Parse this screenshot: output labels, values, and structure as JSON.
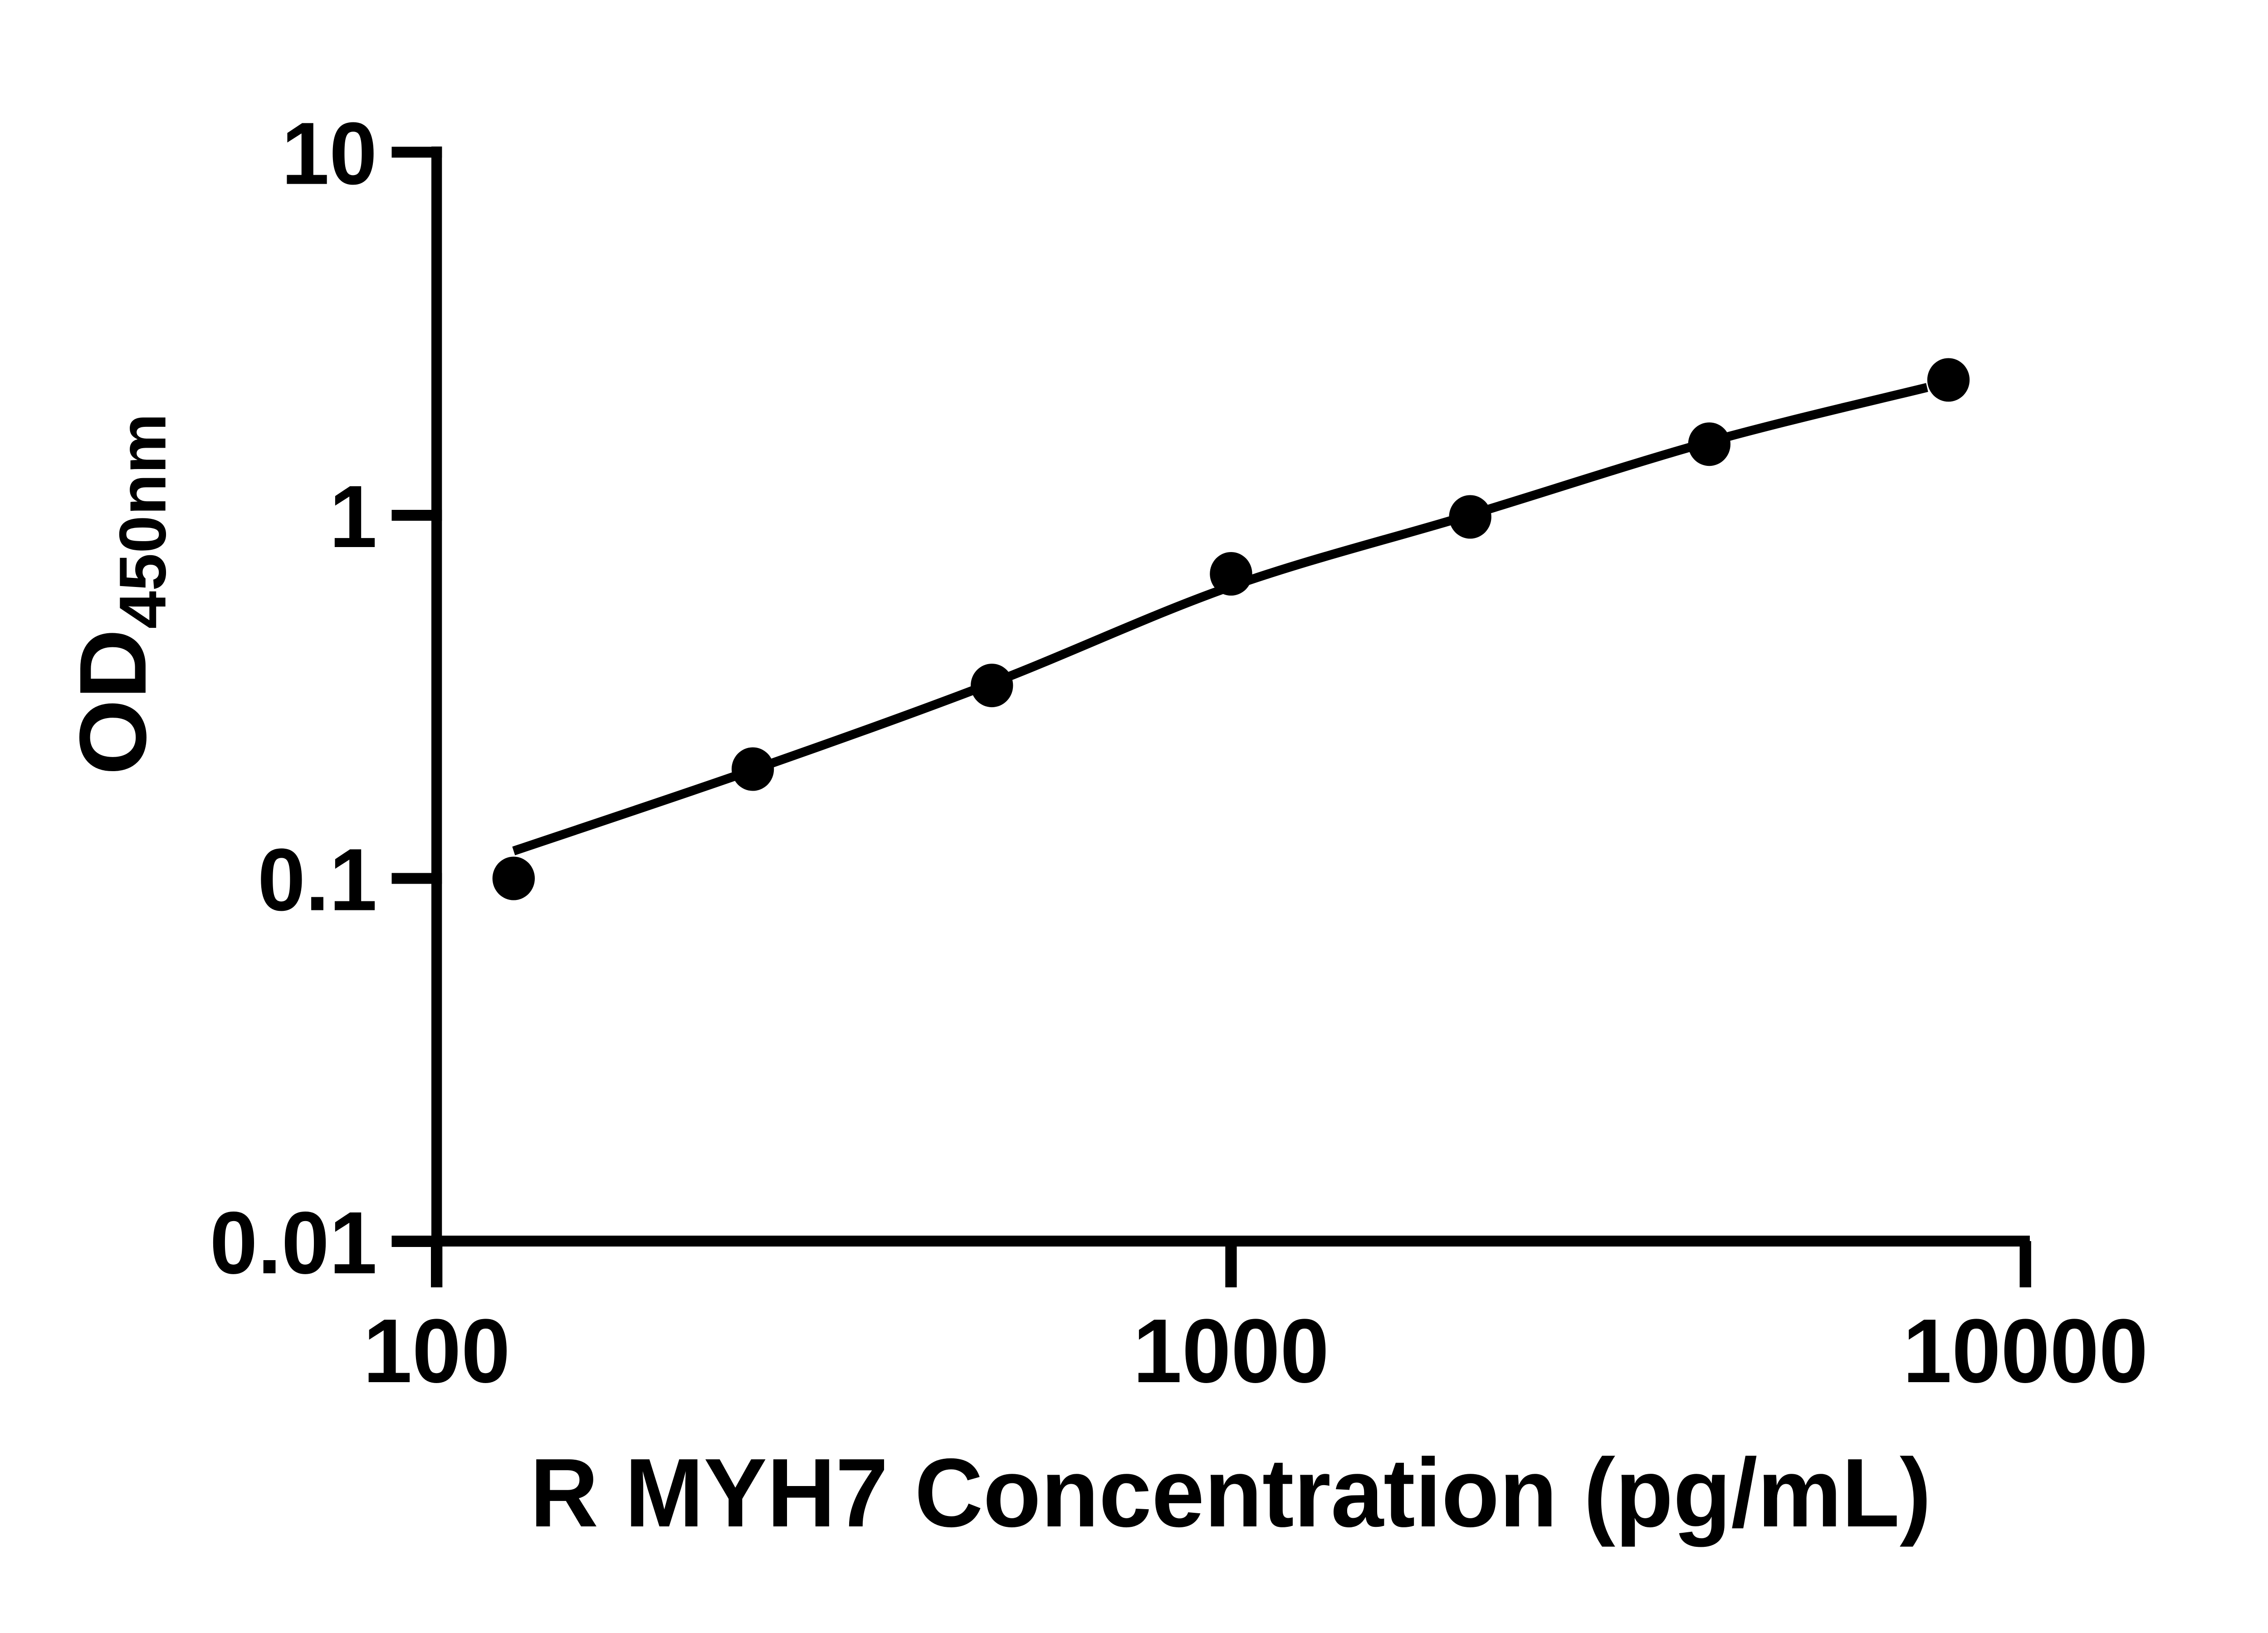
{
  "chart_data": {
    "type": "scatter",
    "title": "",
    "xlabel": "R MYH7 Concentration (pg/mL)",
    "ylabel_main": "OD",
    "ylabel_sub": "450nm",
    "x_scale": "log",
    "y_scale": "log",
    "xlim": [
      100,
      10000
    ],
    "ylim": [
      0.01,
      10
    ],
    "grid": false,
    "legend": false,
    "background_color": "#ffffff",
    "line_color": "#000000",
    "marker_color": "#000000",
    "x_tick_values": [
      100,
      1000,
      10000
    ],
    "x_tick_labels": [
      "100",
      "1000",
      "10000"
    ],
    "y_tick_values": [
      10,
      1,
      0.1,
      0.01
    ],
    "y_tick_labels": [
      "10",
      "1",
      "0.1",
      "0.01"
    ],
    "series": [
      {
        "name": "standard curve data points",
        "marker": "filled-circle",
        "x": [
          125,
          250,
          500,
          1000,
          2000,
          4000,
          8000
        ],
        "y": [
          0.1,
          0.2,
          0.34,
          0.69,
          0.99,
          1.57,
          2.36
        ]
      }
    ],
    "fit_curve": {
      "name": "fitted standard curve line",
      "x": [
        125,
        250,
        500,
        1000,
        2000,
        4000,
        7520
      ],
      "y": [
        0.119,
        0.199,
        0.345,
        0.637,
        1.003,
        1.594,
        2.25
      ]
    }
  }
}
